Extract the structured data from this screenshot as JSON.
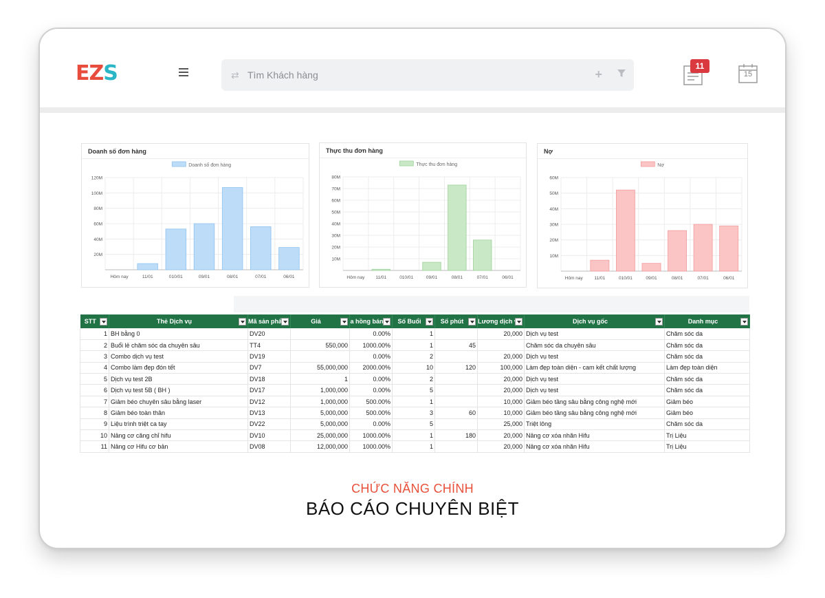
{
  "header": {
    "logo": {
      "l1": "E",
      "l2": "Z",
      "l3": "S"
    },
    "search_placeholder": "Tìm Khách hàng",
    "notification_count": "11",
    "calendar_day": "15",
    "icons": {
      "menu": "hamburger-icon",
      "sync": "sync-icon",
      "add": "plus-icon",
      "filter": "filter-icon",
      "notes": "notes-icon",
      "calendar": "calendar-icon"
    }
  },
  "chart_data": [
    {
      "type": "bar",
      "title": "Doanh số đơn hàng",
      "series_name": "Doanh số đơn hàng",
      "color": "#bcdcf7",
      "stroke": "#8ec2ef",
      "categories": [
        "Hôm nay",
        "11/01",
        "010/01",
        "09/01",
        "08/01",
        "07/01",
        "06/01"
      ],
      "values": [
        0,
        8,
        53,
        60,
        107,
        56,
        29
      ],
      "ylim": [
        0,
        120
      ],
      "yticks": [
        "20M",
        "40M",
        "60M",
        "80M",
        "100M",
        "120M"
      ],
      "ytick_values": [
        20,
        40,
        60,
        80,
        100,
        120
      ]
    },
    {
      "type": "bar",
      "title": "Thực thu đơn hàng",
      "series_name": "Thực thu đơn hàng",
      "color": "#c8e8c6",
      "stroke": "#9fd29b",
      "categories": [
        "Hôm nay",
        "11/01",
        "010/01",
        "09/01",
        "08/01",
        "07/01",
        "06/01"
      ],
      "values": [
        0,
        1,
        0,
        7,
        73,
        26,
        0
      ],
      "ylim": [
        0,
        80
      ],
      "yticks": [
        "10M",
        "20M",
        "30M",
        "40M",
        "50M",
        "60M",
        "70M",
        "80M"
      ],
      "ytick_values": [
        10,
        20,
        30,
        40,
        50,
        60,
        70,
        80
      ]
    },
    {
      "type": "bar",
      "title": "Nợ",
      "series_name": "Nợ",
      "color": "#fcc5c5",
      "stroke": "#f19c9c",
      "categories": [
        "Hôm nay",
        "11/01",
        "010/01",
        "09/01",
        "08/01",
        "07/01",
        "06/01"
      ],
      "values": [
        0,
        7,
        52,
        5,
        26,
        30,
        29
      ],
      "ylim": [
        0,
        60
      ],
      "yticks": [
        "10M",
        "20M",
        "30M",
        "40M",
        "50M",
        "60M"
      ],
      "ytick_values": [
        10,
        20,
        30,
        40,
        50,
        60
      ]
    }
  ],
  "table": {
    "columns": [
      "STT",
      "Thẻ Dịch vụ",
      "Mã sản phẩ",
      "Giá",
      "a hồng bán",
      "Số Buổi",
      "Số phút",
      "Lương dịch v",
      "Dịch vụ gốc",
      "Danh mục"
    ],
    "rows": [
      [
        "1",
        "BH bằng 0",
        "DV20",
        "",
        "0.00%",
        "1",
        "",
        "20,000",
        "Dịch vụ test",
        "Chăm sóc da"
      ],
      [
        "2",
        "Buổi lẻ chăm sóc da chuyên sâu",
        "TT4",
        "550,000",
        "1000.00%",
        "1",
        "45",
        "",
        "Chăm sóc da chuyên sâu",
        "Chăm sóc da"
      ],
      [
        "3",
        "Combo dịch vụ test",
        "DV19",
        "",
        "0.00%",
        "2",
        "",
        "20,000",
        "Dịch vụ test",
        "Chăm sóc da"
      ],
      [
        "4",
        "Combo làm đẹp đón tết",
        "DV7",
        "55,000,000",
        "2000.00%",
        "10",
        "120",
        "100,000",
        "Làm đẹp toàn diện - cam kết chất lượng",
        "Làm đẹp toàn diện"
      ],
      [
        "5",
        "Dịch vụ test 2B",
        "DV18",
        "1",
        "0.00%",
        "2",
        "",
        "20,000",
        "Dịch vụ test",
        "Chăm sóc da"
      ],
      [
        "6",
        "Dịch vụ test 5B ( BH )",
        "DV17",
        "1,000,000",
        "0.00%",
        "5",
        "",
        "20,000",
        "Dịch vụ test",
        "Chăm sóc da"
      ],
      [
        "7",
        "Giảm béo chuyên sâu bằng laser",
        "DV12",
        "1,000,000",
        "500.00%",
        "1",
        "",
        "10,000",
        "Giảm béo tầng sâu bằng công nghệ mới",
        "Giảm béo"
      ],
      [
        "8",
        "Giảm béo toàn thân",
        "DV13",
        "5,000,000",
        "500.00%",
        "3",
        "60",
        "10,000",
        "Giảm béo tầng sâu bằng công nghệ mới",
        "Giảm béo"
      ],
      [
        "9",
        "Liệu trình triệt ca tay",
        "DV22",
        "5,000,000",
        "0.00%",
        "5",
        "",
        "25,000",
        "Triệt lông",
        "Chăm sóc da"
      ],
      [
        "10",
        "Nâng cơ căng chỉ hifu",
        "DV10",
        "25,000,000",
        "1000.00%",
        "1",
        "180",
        "20,000",
        "Nâng cơ xóa nhăn Hifu",
        "Trị Liệu"
      ],
      [
        "11",
        "Nâng cơ Hifu cơ bản",
        "DV08",
        "12,000,000",
        "1000.00%",
        "1",
        "",
        "20,000",
        "Nâng cơ xóa nhăn Hifu",
        "Trị Liệu"
      ]
    ]
  },
  "caption": {
    "subtitle": "CHỨC NĂNG CHÍNH",
    "title": "BÁO CÁO CHUYÊN BIỆT"
  }
}
